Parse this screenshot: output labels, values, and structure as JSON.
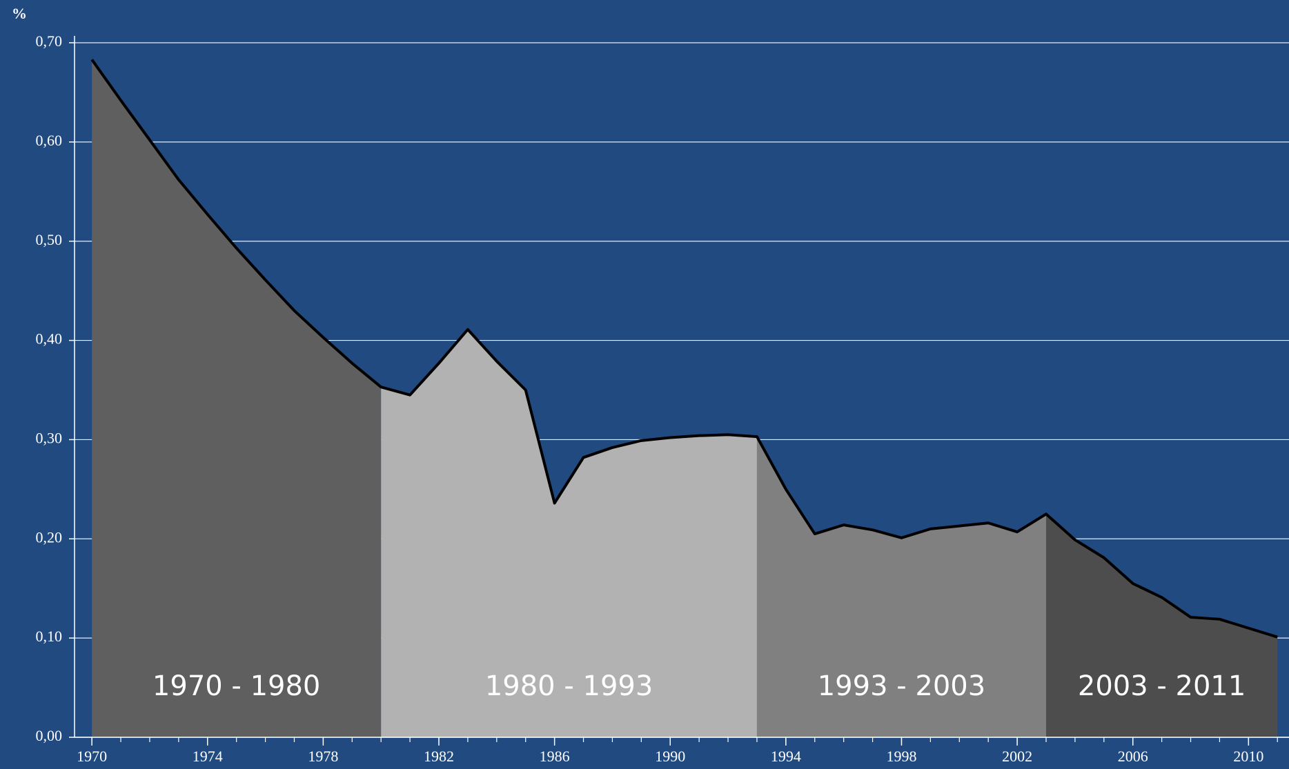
{
  "chart_data": {
    "type": "area",
    "y_unit_label": "%",
    "x": [
      1970,
      1971,
      1972,
      1973,
      1974,
      1975,
      1976,
      1977,
      1978,
      1979,
      1980,
      1981,
      1982,
      1983,
      1984,
      1985,
      1986,
      1987,
      1988,
      1989,
      1990,
      1991,
      1992,
      1993,
      1994,
      1995,
      1996,
      1997,
      1998,
      1999,
      2000,
      2001,
      2002,
      2003,
      2004,
      2005,
      2006,
      2007,
      2008,
      2009,
      2010,
      2011
    ],
    "values": [
      0.683,
      0.642,
      0.602,
      0.562,
      0.527,
      0.493,
      0.461,
      0.43,
      0.403,
      0.377,
      0.353,
      0.345,
      0.377,
      0.411,
      0.379,
      0.35,
      0.236,
      0.282,
      0.292,
      0.299,
      0.302,
      0.304,
      0.305,
      0.303,
      0.25,
      0.205,
      0.214,
      0.209,
      0.201,
      0.21,
      0.213,
      0.216,
      0.207,
      0.225,
      0.199,
      0.181,
      0.155,
      0.141,
      0.121,
      0.119,
      0.11,
      0.101
    ],
    "line_color": "#000000",
    "periods": [
      {
        "label": "1970 - 1980",
        "start": 1970,
        "end": 1980,
        "color": "#5f5f5f"
      },
      {
        "label": "1980 - 1993",
        "start": 1980,
        "end": 1993,
        "color": "#b2b2b2"
      },
      {
        "label": "1993 - 2003",
        "start": 1993,
        "end": 2003,
        "color": "#808080"
      },
      {
        "label": "2003 - 2011",
        "start": 2003,
        "end": 2011,
        "color": "#4d4d4d"
      }
    ],
    "xlim": [
      1969.4,
      2011.4
    ],
    "xticks": [
      1970,
      1974,
      1978,
      1982,
      1986,
      1990,
      1994,
      1998,
      2002,
      2006,
      2010
    ],
    "ylim": [
      0,
      0.7
    ],
    "yticks": [
      {
        "value": 0,
        "label": "0,00"
      },
      {
        "value": 0.1,
        "label": "0,10"
      },
      {
        "value": 0.2,
        "label": "0,20"
      },
      {
        "value": 0.3,
        "label": "0,30"
      },
      {
        "value": 0.4,
        "label": "0,40"
      },
      {
        "value": 0.5,
        "label": "0,50"
      },
      {
        "value": 0.6,
        "label": "0,60"
      },
      {
        "value": 0.7,
        "label": "0,70"
      }
    ],
    "grid": true
  }
}
